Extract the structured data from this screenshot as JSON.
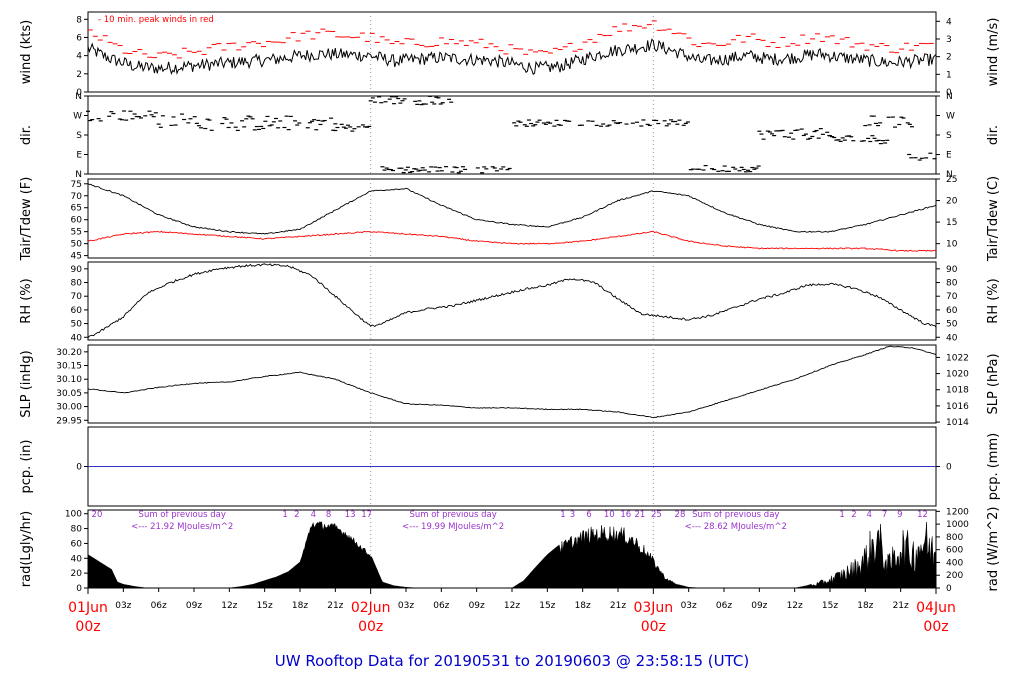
{
  "title": "UW Rooftop Data for 20190531  to  20190603 @ 23:58:15  (UTC)",
  "colors": {
    "black": "#000000",
    "red": "#ff0000",
    "blue": "#0000cc",
    "purple": "#9933cc",
    "precip_line": "#3333cc"
  },
  "x_axis": {
    "hour_ticks": [
      "03z",
      "06z",
      "09z",
      "12z",
      "15z",
      "18z",
      "21z",
      "03z",
      "06z",
      "09z",
      "12z",
      "15z",
      "18z",
      "21z",
      "03z",
      "06z",
      "09z",
      "12z",
      "15z",
      "18z",
      "21z"
    ],
    "date_labels": [
      {
        "date": "01Jun",
        "time": "00z",
        "hour": 0
      },
      {
        "date": "02Jun",
        "time": "00z",
        "hour": 24
      },
      {
        "date": "03Jun",
        "time": "00z",
        "hour": 48
      },
      {
        "date": "04Jun",
        "time": "00z",
        "hour": 72
      }
    ]
  },
  "chart_data": [
    {
      "type": "line",
      "name": "wind",
      "ylabel_left": "wind (kts)",
      "ylabel_right": "wind (m/s)",
      "legend": "- 10 min. peak winds in red",
      "yticks_left": [
        "0",
        "2",
        "4",
        "6",
        "8"
      ],
      "yticks_right": [
        "0",
        "1",
        "2",
        "3",
        "4"
      ],
      "ylim": [
        0,
        8.8
      ],
      "series": [
        {
          "role": "mean",
          "color": "#000000",
          "x": [
            0,
            2,
            4,
            6,
            8,
            10,
            12,
            14,
            16,
            18,
            20,
            22,
            24,
            26,
            28,
            30,
            32,
            34,
            36,
            38,
            40,
            42,
            44,
            46,
            48,
            50,
            52,
            54,
            56,
            58,
            60,
            62,
            64,
            66,
            68,
            70,
            72
          ],
          "y": [
            4.8,
            3.6,
            2.8,
            2.6,
            2.8,
            3.0,
            3.2,
            3.4,
            3.6,
            4.0,
            4.2,
            4.1,
            4.0,
            3.4,
            3.6,
            3.8,
            3.6,
            3.5,
            3.1,
            2.6,
            2.8,
            3.6,
            4.4,
            4.8,
            5.2,
            4.4,
            3.4,
            3.6,
            4.0,
            3.6,
            3.8,
            4.2,
            3.8,
            3.5,
            3.2,
            3.4,
            3.6
          ]
        },
        {
          "role": "peak",
          "color": "#ff0000",
          "x": [
            0,
            2,
            4,
            6,
            8,
            10,
            12,
            14,
            16,
            18,
            20,
            22,
            24,
            26,
            28,
            30,
            32,
            34,
            36,
            38,
            40,
            42,
            44,
            46,
            48,
            50,
            52,
            54,
            56,
            58,
            60,
            62,
            64,
            66,
            68,
            70,
            72
          ],
          "y": [
            6.8,
            5.2,
            4.2,
            3.8,
            4.2,
            4.6,
            5.0,
            5.4,
            5.6,
            6.2,
            6.4,
            6.2,
            6.0,
            5.2,
            5.4,
            5.6,
            5.4,
            5.2,
            4.6,
            4.0,
            4.4,
            5.4,
            6.6,
            7.2,
            7.6,
            6.6,
            5.2,
            5.4,
            6.0,
            5.4,
            5.6,
            6.2,
            5.6,
            5.2,
            4.8,
            5.0,
            5.2
          ]
        }
      ]
    },
    {
      "type": "scatter",
      "name": "direction",
      "ylabel_left": "dir.",
      "ylabel_right": "dir.",
      "yticks_left": [
        "N",
        "E",
        "S",
        "W",
        "N"
      ],
      "yticks_right": [
        "N",
        "E",
        "S",
        "W",
        "N"
      ],
      "ylim": [
        0,
        360
      ],
      "bands": [
        {
          "x0": 0,
          "x1": 6,
          "y": 270,
          "spread": 25
        },
        {
          "x0": 6,
          "x1": 12,
          "y": 240,
          "spread": 40
        },
        {
          "x0": 12,
          "x1": 21,
          "y": 235,
          "spread": 35
        },
        {
          "x0": 21,
          "x1": 24,
          "y": 215,
          "spread": 20
        },
        {
          "x0": 24,
          "x1": 31,
          "y": 340,
          "spread": 20
        },
        {
          "x0": 25,
          "x1": 36,
          "y": 20,
          "spread": 15
        },
        {
          "x0": 36,
          "x1": 51,
          "y": 235,
          "spread": 15
        },
        {
          "x0": 51,
          "x1": 57,
          "y": 25,
          "spread": 15
        },
        {
          "x0": 57,
          "x1": 63,
          "y": 185,
          "spread": 25
        },
        {
          "x0": 63,
          "x1": 68,
          "y": 160,
          "spread": 20
        },
        {
          "x0": 66,
          "x1": 70,
          "y": 240,
          "spread": 30
        },
        {
          "x0": 69,
          "x1": 72,
          "y": 80,
          "spread": 20
        }
      ]
    },
    {
      "type": "line",
      "name": "temperature",
      "ylabel_left": "Tair/Tdew (F)",
      "ylabel_right": "Tair/Tdew (C)",
      "yticks_left": [
        "45",
        "50",
        "55",
        "60",
        "65",
        "70",
        "75"
      ],
      "yticks_right": [
        "10",
        "15",
        "20",
        "25"
      ],
      "ylim": [
        44,
        77
      ],
      "series": [
        {
          "role": "Tair",
          "color": "#000000",
          "x": [
            0,
            3,
            6,
            9,
            12,
            15,
            18,
            21,
            24,
            27,
            30,
            33,
            36,
            39,
            42,
            45,
            48,
            51,
            54,
            57,
            60,
            63,
            66,
            69,
            72
          ],
          "y": [
            75,
            70,
            62,
            57,
            55,
            54,
            56,
            64,
            72,
            73,
            66,
            60,
            58,
            57,
            61,
            68,
            72,
            70,
            63,
            58,
            55,
            55,
            58,
            62,
            66
          ]
        },
        {
          "role": "Tdew",
          "color": "#ff0000",
          "x": [
            0,
            3,
            6,
            9,
            12,
            15,
            18,
            21,
            24,
            27,
            30,
            33,
            36,
            39,
            42,
            45,
            48,
            51,
            54,
            57,
            60,
            63,
            66,
            69,
            72
          ],
          "y": [
            51,
            54,
            55,
            54,
            53,
            52,
            53,
            54,
            55,
            54,
            53,
            51,
            50,
            50,
            51,
            53,
            55,
            51,
            49,
            48,
            48,
            48,
            48,
            47,
            47
          ]
        }
      ]
    },
    {
      "type": "line",
      "name": "relative-humidity",
      "ylabel_left": "RH (%)",
      "ylabel_right": "RH (%)",
      "yticks_left": [
        "40",
        "50",
        "60",
        "70",
        "80",
        "90"
      ],
      "yticks_right": [
        "40",
        "50",
        "60",
        "70",
        "80",
        "90"
      ],
      "ylim": [
        38,
        95
      ],
      "series": [
        {
          "role": "RH",
          "color": "#000000",
          "x": [
            0,
            1,
            3,
            5,
            7,
            9,
            11,
            13,
            15,
            17,
            19,
            21,
            23,
            24,
            25,
            27,
            29,
            31,
            33,
            35,
            37,
            39,
            41,
            43,
            45,
            47,
            49,
            51,
            53,
            55,
            57,
            59,
            61,
            63,
            65,
            67,
            69,
            71,
            72
          ],
          "y": [
            40,
            44,
            55,
            72,
            80,
            86,
            90,
            92,
            93,
            92,
            85,
            70,
            55,
            48,
            50,
            58,
            61,
            63,
            67,
            71,
            75,
            78,
            83,
            80,
            68,
            57,
            55,
            53,
            56,
            62,
            68,
            72,
            78,
            79,
            76,
            70,
            60,
            50,
            48
          ]
        }
      ]
    },
    {
      "type": "line",
      "name": "sea-level-pressure",
      "ylabel_left": "SLP (inHg)",
      "ylabel_right": "SLP (hPa)",
      "yticks_left": [
        "29.95",
        "30.00",
        "30.05",
        "30.10",
        "30.15",
        "30.20"
      ],
      "yticks_right": [
        "1014",
        "1016",
        "1018",
        "1020",
        "1022"
      ],
      "ylim": [
        29.94,
        30.225
      ],
      "series": [
        {
          "role": "SLP",
          "color": "#000000",
          "x": [
            0,
            3,
            6,
            9,
            12,
            15,
            18,
            21,
            24,
            27,
            30,
            33,
            36,
            39,
            42,
            45,
            48,
            51,
            54,
            57,
            60,
            63,
            66,
            68,
            70,
            72
          ],
          "y": [
            30.065,
            30.05,
            30.07,
            30.085,
            30.09,
            30.11,
            30.125,
            30.1,
            30.05,
            30.01,
            30.005,
            29.995,
            29.995,
            29.99,
            29.99,
            29.98,
            29.96,
            29.98,
            30.02,
            30.06,
            30.1,
            30.15,
            30.19,
            30.22,
            30.215,
            30.19
          ]
        }
      ]
    },
    {
      "type": "line",
      "name": "precipitation",
      "ylabel_left": "pcp. (in)",
      "ylabel_right": "pcp. (mm)",
      "yticks_left": [
        "0"
      ],
      "yticks_right": [
        "0"
      ],
      "ylim": [
        -1,
        1
      ],
      "series": [
        {
          "role": "precip",
          "color": "#3333cc",
          "x": [
            0,
            72
          ],
          "y": [
            0,
            0
          ]
        }
      ]
    },
    {
      "type": "area",
      "name": "radiation",
      "ylabel_left": "rad(Lgly/hr)",
      "ylabel_right": "rad (W/m^2)",
      "yticks_left": [
        "0",
        "20",
        "40",
        "60",
        "80",
        "100"
      ],
      "yticks_right": [
        "0",
        "200",
        "400",
        "600",
        "800",
        "1000",
        "1200"
      ],
      "ylim": [
        0,
        105
      ],
      "daily_sums": [
        {
          "label": "Sum of previous day",
          "value": "<--- 21.92 MJoules/m^2",
          "x": 8
        },
        {
          "label": "Sum of previous day",
          "value": "<--- 19.99 MJoules/m^2",
          "x": 31
        },
        {
          "label": "Sum of previous day",
          "value": "<--- 28.62 MJoules/m^2",
          "x": 55
        }
      ],
      "hour_counts": [
        {
          "text": "20",
          "x": 0.3
        },
        {
          "text": "1",
          "x": 16.5
        },
        {
          "text": "2",
          "x": 17.5
        },
        {
          "text": "4",
          "x": 18.9
        },
        {
          "text": "8",
          "x": 20.2
        },
        {
          "text": "13",
          "x": 21.8
        },
        {
          "text": "17",
          "x": 23.2
        },
        {
          "text": "1",
          "x": 40.1
        },
        {
          "text": "3",
          "x": 40.9
        },
        {
          "text": "6",
          "x": 42.3
        },
        {
          "text": "10",
          "x": 43.8
        },
        {
          "text": "16",
          "x": 45.2
        },
        {
          "text": "21",
          "x": 46.4
        },
        {
          "text": "25",
          "x": 47.8
        },
        {
          "text": "28",
          "x": 49.8
        },
        {
          "text": "1",
          "x": 63.8
        },
        {
          "text": "2",
          "x": 64.8
        },
        {
          "text": "4",
          "x": 66.1
        },
        {
          "text": "7",
          "x": 67.4
        },
        {
          "text": "9",
          "x": 68.7
        },
        {
          "text": "12",
          "x": 70.4
        }
      ],
      "series": [
        {
          "role": "radiation",
          "color": "#000000",
          "x": [
            0,
            1,
            2,
            2.5,
            3,
            4,
            5,
            12,
            13,
            14,
            15,
            16,
            17,
            18,
            19,
            20,
            21,
            22,
            23,
            24,
            25,
            26,
            27,
            28,
            29,
            36,
            37,
            38,
            39,
            40,
            41,
            42,
            43,
            44,
            45,
            46,
            47,
            48,
            49,
            50,
            51,
            52,
            60,
            61,
            62,
            63,
            64,
            65,
            66,
            67,
            68,
            69,
            70,
            71,
            72
          ],
          "y": [
            45,
            35,
            25,
            8,
            5,
            2,
            0,
            0,
            2,
            5,
            10,
            15,
            22,
            35,
            90,
            88,
            85,
            75,
            60,
            45,
            8,
            3,
            1,
            0,
            0,
            0,
            10,
            28,
            45,
            58,
            68,
            75,
            80,
            82,
            80,
            75,
            60,
            40,
            15,
            5,
            1,
            0,
            0,
            3,
            8,
            15,
            25,
            35,
            55,
            95,
            40,
            80,
            65,
            90,
            60
          ]
        }
      ]
    }
  ]
}
